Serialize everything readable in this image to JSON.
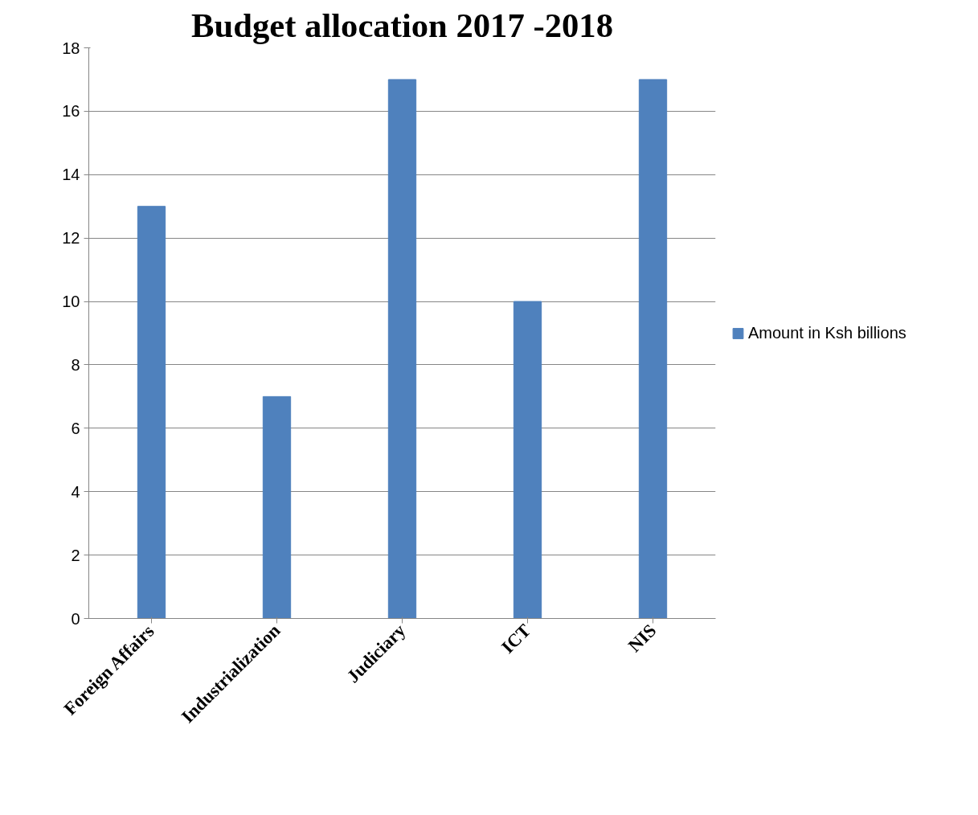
{
  "chart_data": {
    "type": "bar",
    "title": "Budget allocation 2017 -2018",
    "categories": [
      "Foreign Affairs",
      "Industrialization",
      "Judiciary",
      "ICT",
      "NIS"
    ],
    "series": [
      {
        "name": "Amount in Ksh billions",
        "color": "#4f81bd",
        "values": [
          13,
          7,
          17,
          10,
          17
        ]
      }
    ],
    "ylim": [
      0,
      18
    ],
    "yticks": [
      0,
      2,
      4,
      6,
      8,
      10,
      12,
      14,
      16,
      18
    ],
    "grid": "y",
    "legend": "right"
  }
}
